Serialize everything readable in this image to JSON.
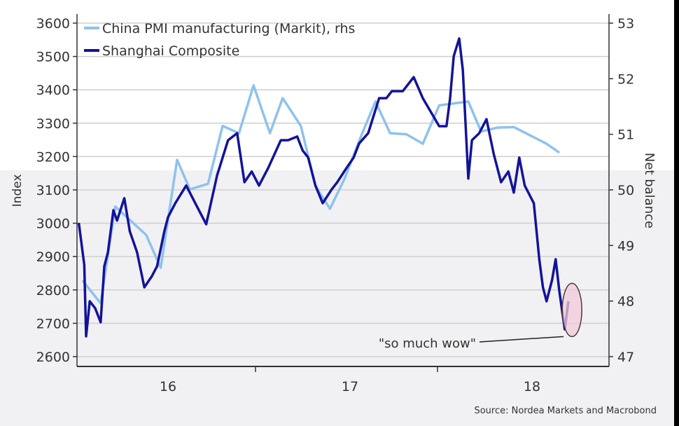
{
  "chart_data": {
    "type": "line",
    "yaxis_left": {
      "label": "Index",
      "ticks": [
        2600,
        2700,
        2800,
        2900,
        3000,
        3100,
        3200,
        3300,
        3400,
        3500,
        3600
      ],
      "range": [
        2600,
        3600
      ]
    },
    "yaxis_right": {
      "label": "Net balance",
      "ticks": [
        47,
        48,
        49,
        50,
        51,
        52,
        53
      ],
      "range": [
        47,
        53
      ]
    },
    "xaxis": {
      "ticks": [
        {
          "value": 2016.5,
          "label": "16"
        },
        {
          "value": 2017.5,
          "label": "17"
        },
        {
          "value": 2018.5,
          "label": "18"
        }
      ],
      "range": [
        2016,
        2018.92
      ]
    },
    "grid": true,
    "legend_position": "top-left",
    "series": [
      {
        "name": "China PMI manufacturing (Markit), rhs",
        "axis": "right",
        "color": "#8ec2ee",
        "x": [
          2016.03,
          2016.13,
          2016.21,
          2016.38,
          2016.46,
          2016.55,
          2016.62,
          2016.72,
          2016.8,
          2016.89,
          2016.97,
          2017.06,
          2017.13,
          2017.23,
          2017.31,
          2017.39,
          2017.47,
          2017.56,
          2017.64,
          2017.72,
          2017.81,
          2017.9,
          2017.99,
          2018.15,
          2018.22,
          2018.31,
          2018.4,
          2018.58,
          2018.65
        ],
        "values": [
          48.37,
          47.96,
          49.7,
          49.19,
          48.6,
          50.54,
          50.01,
          50.11,
          51.15,
          51.02,
          51.88,
          51.02,
          51.65,
          51.15,
          50.07,
          49.66,
          50.2,
          50.96,
          51.59,
          51.02,
          51.0,
          50.83,
          51.52,
          51.59,
          51.05,
          51.12,
          51.13,
          50.83,
          50.67
        ]
      },
      {
        "name": "Shanghai Composite",
        "axis": "left",
        "color": "#13139a",
        "x": [
          2016.01,
          2016.04,
          2016.05,
          2016.07,
          2016.1,
          2016.13,
          2016.15,
          2016.17,
          2016.2,
          2016.22,
          2016.26,
          2016.29,
          2016.33,
          2016.37,
          2016.41,
          2016.44,
          2016.48,
          2016.5,
          2016.54,
          2016.6,
          2016.65,
          2016.71,
          2016.77,
          2016.83,
          2016.88,
          2016.92,
          2016.96,
          2017.0,
          2017.05,
          2017.12,
          2017.16,
          2017.21,
          2017.24,
          2017.27,
          2017.31,
          2017.35,
          2017.4,
          2017.43,
          2017.48,
          2017.52,
          2017.55,
          2017.6,
          2017.66,
          2017.7,
          2017.73,
          2017.79,
          2017.85,
          2017.9,
          2017.99,
          2018.03,
          2018.05,
          2018.07,
          2018.1,
          2018.12,
          2018.15,
          2018.17,
          2018.21,
          2018.25,
          2018.29,
          2018.33,
          2018.37,
          2018.4,
          2018.43,
          2018.46,
          2018.51,
          2018.54,
          2018.56,
          2018.58,
          2018.61,
          2018.63,
          2018.65,
          2018.68,
          2018.7
        ],
        "values": [
          3001,
          2875,
          2661,
          2766,
          2745,
          2703,
          2871,
          2913,
          3039,
          3008,
          3075,
          2976,
          2913,
          2808,
          2840,
          2871,
          2976,
          3018,
          3060,
          3113,
          3060,
          2997,
          3144,
          3249,
          3270,
          3123,
          3155,
          3113,
          3165,
          3249,
          3249,
          3260,
          3218,
          3197,
          3113,
          3060,
          3102,
          3123,
          3165,
          3197,
          3239,
          3270,
          3375,
          3375,
          3396,
          3396,
          3438,
          3375,
          3291,
          3291,
          3375,
          3501,
          3554,
          3459,
          3134,
          3249,
          3270,
          3312,
          3207,
          3123,
          3155,
          3092,
          3197,
          3113,
          3060,
          2892,
          2808,
          2766,
          2829,
          2892,
          2797,
          2682,
          2766
        ]
      }
    ],
    "annotation": {
      "text": "\"so much wow\"",
      "x": 2018.72,
      "y": 2740
    },
    "source": "Source: Nordea Markets and Macrobond"
  }
}
